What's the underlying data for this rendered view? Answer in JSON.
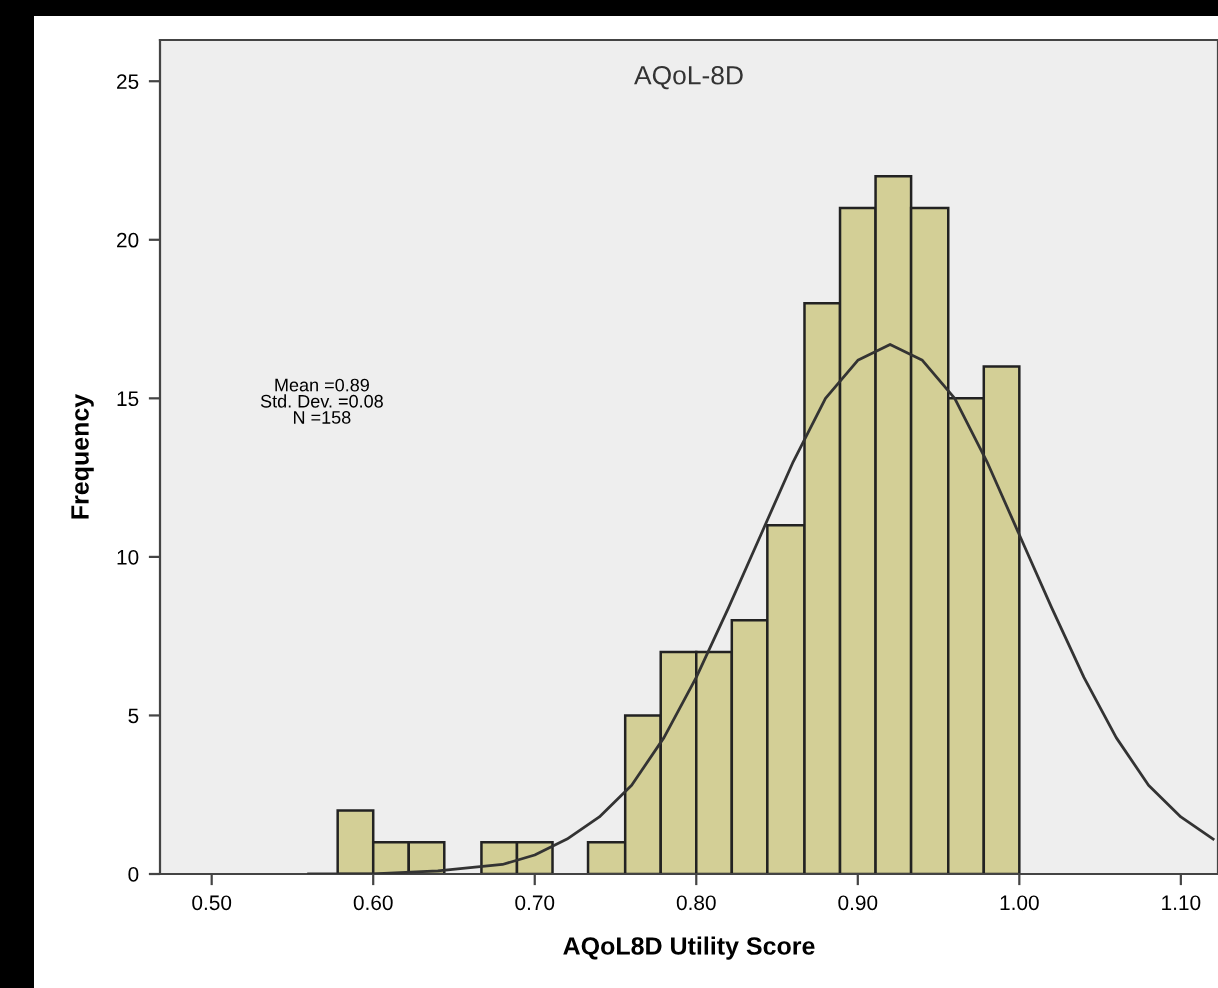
{
  "chart_data": {
    "type": "histogram",
    "title": "AQoL-8D",
    "xlabel": "AQoL8D Utility Score",
    "ylabel": "Frequency",
    "bins": [
      0.578,
      0.6,
      0.622,
      0.644,
      0.667,
      0.689,
      0.711,
      0.733,
      0.756,
      0.778,
      0.8,
      0.822,
      0.844,
      0.867,
      0.889,
      0.911,
      0.933,
      0.956,
      0.978,
      1.0
    ],
    "series": [
      {
        "color": "#d3cf96",
        "values": [
          2,
          1,
          1,
          0,
          1,
          1,
          0,
          1,
          5,
          7,
          7,
          8,
          11,
          18,
          21,
          22,
          21,
          15,
          16
        ]
      },
      {
        "type": "line",
        "color": "#333333",
        "x": [
          0.56,
          0.6,
          0.64,
          0.68,
          0.7,
          0.72,
          0.74,
          0.76,
          0.78,
          0.8,
          0.82,
          0.84,
          0.86,
          0.88,
          0.9,
          0.92,
          0.94,
          0.96,
          0.98,
          1.0,
          1.02,
          1.04,
          1.06,
          1.08,
          1.1,
          1.12
        ],
        "values": [
          0.0,
          0.0,
          0.1,
          0.3,
          0.6,
          1.1,
          1.8,
          2.8,
          4.3,
          6.2,
          8.4,
          10.7,
          13.0,
          15.0,
          16.2,
          16.7,
          16.2,
          15.0,
          13.0,
          10.7,
          8.4,
          6.2,
          4.3,
          2.8,
          1.8,
          1.1
        ]
      }
    ],
    "annotations": [
      "Mean =0.89\nStd. Dev. =0.08\nN =158"
    ],
    "xlim": [
      0.468,
      1.123
    ],
    "ylim": [
      0,
      26.3
    ],
    "xticks": [
      {
        "value": 0.5,
        "label": "0.50"
      },
      {
        "value": 0.6,
        "label": "0.60"
      },
      {
        "value": 0.7,
        "label": "0.70"
      },
      {
        "value": 0.8,
        "label": "0.80"
      },
      {
        "value": 0.9,
        "label": "0.90"
      },
      {
        "value": 1.0,
        "label": "1.00"
      },
      {
        "value": 1.1,
        "label": "1.10"
      }
    ],
    "yticks": [
      0,
      5,
      10,
      15,
      20,
      25
    ]
  }
}
